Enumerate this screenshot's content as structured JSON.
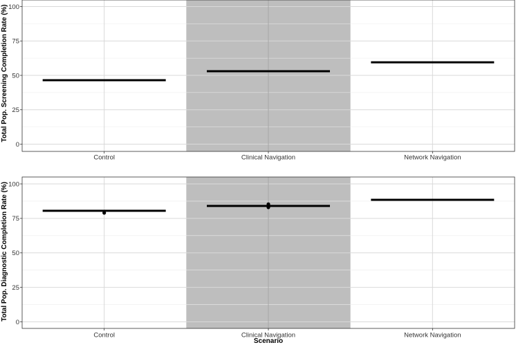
{
  "chart_data": [
    {
      "type": "box",
      "categories": [
        "Control",
        "Clinical Navigation",
        "Network Navigation"
      ],
      "highlighted_category": "Clinical Navigation",
      "highlight_color": "#bebebe",
      "ylabel": "Total Pop. Screening Completion Rate (%)",
      "xlabel": "",
      "ylim": [
        0,
        100
      ],
      "yticks": [
        0,
        25,
        50,
        75,
        100
      ],
      "grid": true,
      "series": [
        {
          "values": [
            46.5,
            53,
            59.5
          ]
        }
      ],
      "outliers": []
    },
    {
      "type": "box",
      "categories": [
        "Control",
        "Clinical Navigation",
        "Network Navigation"
      ],
      "highlighted_category": "Clinical Navigation",
      "highlight_color": "#bebebe",
      "ylabel": "Total Pop. Diagnostic Completion Rate (%)",
      "xlabel": "Scenario",
      "ylim": [
        0,
        100
      ],
      "yticks": [
        0,
        25,
        50,
        75,
        100
      ],
      "grid": true,
      "series": [
        {
          "values": [
            80.5,
            84,
            88.5
          ]
        }
      ],
      "outliers": [
        {
          "category": "Control",
          "y": 79
        },
        {
          "category": "Clinical Navigation",
          "y": 85.3
        },
        {
          "category": "Clinical Navigation",
          "y": 83
        }
      ]
    }
  ],
  "colors": {
    "line": "#000000",
    "grid_major": "#d9d9d9",
    "grid_minor": "#ececec",
    "panel_border": "#333333"
  }
}
